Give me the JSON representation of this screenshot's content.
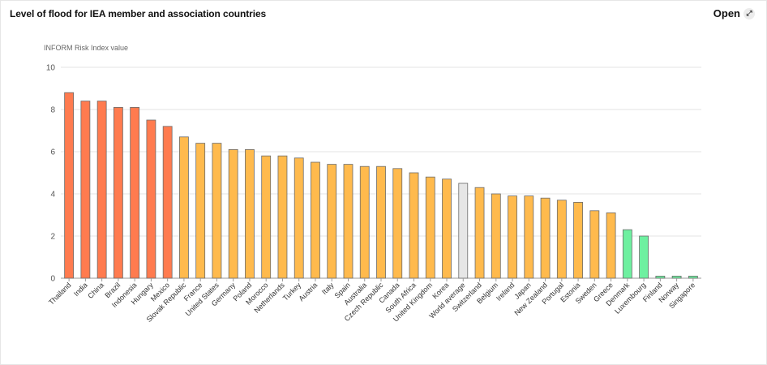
{
  "header": {
    "title": "Level of flood for IEA member and association countries",
    "open_label": "Open",
    "open_icon": "expand-icon"
  },
  "colors": {
    "high": "#ff7b4f",
    "medium": "#ffba4d",
    "average": "#e6e6e6",
    "low": "#6ef0a0"
  },
  "chart_data": {
    "type": "bar",
    "ylabel": "INFORM Risk Index value",
    "xlabel": "",
    "ylim": [
      0,
      10
    ],
    "yticks": [
      0,
      2,
      4,
      6,
      8,
      10
    ],
    "grid": true,
    "categories": [
      "Thailand",
      "India",
      "China",
      "Brazil",
      "Indonesia",
      "Hungary",
      "Mexico",
      "Slovak Republic",
      "France",
      "United States",
      "Germany",
      "Poland",
      "Morocco",
      "Netherlands",
      "Turkey",
      "Austria",
      "Italy",
      "Spain",
      "Australia",
      "Czech Republic",
      "Canada",
      "South Africa",
      "United Kingdom",
      "Korea",
      "World average",
      "Switzerland",
      "Belgium",
      "Ireland",
      "Japan",
      "New Zealand",
      "Portugal",
      "Estonia",
      "Sweden",
      "Greece",
      "Denmark",
      "Luxembourg",
      "Finland",
      "Norway",
      "Singapore"
    ],
    "values": [
      8.8,
      8.4,
      8.4,
      8.1,
      8.1,
      7.5,
      7.2,
      6.7,
      6.4,
      6.4,
      6.1,
      6.1,
      5.8,
      5.8,
      5.7,
      5.5,
      5.4,
      5.4,
      5.3,
      5.3,
      5.2,
      5.0,
      4.8,
      4.7,
      4.5,
      4.3,
      4.0,
      3.9,
      3.9,
      3.8,
      3.7,
      3.6,
      3.2,
      3.1,
      2.3,
      2.0,
      0.1,
      0.1,
      0.1
    ],
    "levels": [
      "high",
      "high",
      "high",
      "high",
      "high",
      "high",
      "high",
      "medium",
      "medium",
      "medium",
      "medium",
      "medium",
      "medium",
      "medium",
      "medium",
      "medium",
      "medium",
      "medium",
      "medium",
      "medium",
      "medium",
      "medium",
      "medium",
      "medium",
      "average",
      "medium",
      "medium",
      "medium",
      "medium",
      "medium",
      "medium",
      "medium",
      "medium",
      "medium",
      "low",
      "low",
      "low",
      "low",
      "low"
    ]
  }
}
